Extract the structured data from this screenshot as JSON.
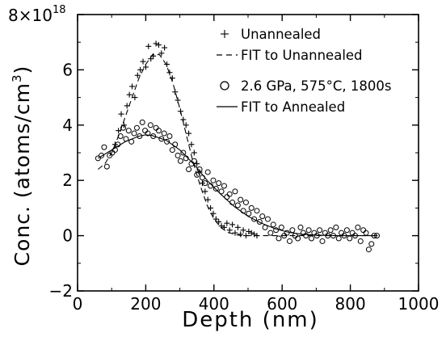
{
  "chart_data": {
    "type": "scatter",
    "xlabel": "Depth (nm)",
    "ylabel": "Conc. (atoms/cm",
    "ylabel_sup": "3",
    "ylabel_close": ")",
    "xlim": [
      0,
      1000
    ],
    "ylim": [
      -2,
      8
    ],
    "x_ticks": [
      0,
      200,
      400,
      600,
      800,
      1000
    ],
    "y_ticks": [
      -2,
      0,
      2,
      4,
      6
    ],
    "y_top_label": {
      "mantissa": "8×10",
      "exponent": "18"
    },
    "grid": false,
    "legend_position": "top-right",
    "legend": [
      {
        "marker": "+",
        "label": "Unannealed"
      },
      {
        "marker": "dashed-line",
        "label": "FIT to Unannealed"
      },
      {
        "marker": "circle",
        "label": "2.6 GPa, 575°C, 1800s"
      },
      {
        "marker": "solid-line",
        "label": "FIT to Annealed"
      }
    ],
    "series": [
      {
        "name": "Unannealed",
        "marker": "plus",
        "x": [
          110,
          120,
          128,
          136,
          145,
          152,
          160,
          168,
          176,
          184,
          192,
          200,
          208,
          215,
          222,
          230,
          238,
          246,
          255,
          262,
          270,
          278,
          286,
          294,
          302,
          310,
          318,
          326,
          334,
          342,
          350,
          358,
          366,
          374,
          382,
          390,
          398,
          406,
          414,
          422,
          430,
          438,
          446,
          454,
          462,
          470,
          478,
          486,
          494,
          502,
          510,
          518,
          526
        ],
        "y": [
          3.3,
          3.8,
          4.4,
          4.0,
          4.7,
          5.1,
          5.4,
          5.0,
          5.8,
          6.0,
          6.3,
          6.1,
          6.85,
          6.4,
          6.5,
          6.95,
          6.9,
          6.6,
          6.8,
          6.2,
          5.9,
          5.7,
          5.2,
          4.9,
          4.5,
          4.2,
          4.0,
          3.7,
          3.3,
          3.0,
          2.6,
          2.3,
          1.9,
          1.6,
          1.3,
          1.0,
          0.8,
          0.6,
          0.5,
          0.35,
          0.3,
          0.45,
          0.2,
          0.4,
          0.1,
          0.3,
          0.05,
          0.2,
          0.0,
          0.15,
          0.1,
          0.05,
          0.0
        ]
      },
      {
        "name": "2.6 GPa, 575°C, 1800s",
        "marker": "circle",
        "x": [
          60,
          70,
          78,
          86,
          94,
          102,
          110,
          118,
          126,
          134,
          142,
          150,
          158,
          166,
          174,
          182,
          190,
          198,
          206,
          214,
          222,
          230,
          238,
          246,
          254,
          262,
          270,
          278,
          286,
          294,
          302,
          310,
          318,
          326,
          334,
          342,
          350,
          358,
          366,
          374,
          382,
          390,
          398,
          406,
          414,
          422,
          430,
          438,
          446,
          454,
          462,
          470,
          478,
          486,
          494,
          502,
          510,
          518,
          526,
          534,
          542,
          550,
          558,
          566,
          574,
          582,
          590,
          598,
          606,
          614,
          622,
          630,
          638,
          646,
          654,
          662,
          670,
          678,
          686,
          694,
          702,
          710,
          718,
          726,
          734,
          742,
          750,
          758,
          766,
          774,
          782,
          790,
          798,
          806,
          814,
          822,
          830,
          838,
          846,
          854,
          862,
          870,
          878
        ],
        "y": [
          2.8,
          2.9,
          3.2,
          2.5,
          2.9,
          3.0,
          3.1,
          3.3,
          3.6,
          3.9,
          3.5,
          3.8,
          3.4,
          3.7,
          3.9,
          3.6,
          4.1,
          3.8,
          3.7,
          4.0,
          3.6,
          3.9,
          3.8,
          3.5,
          3.7,
          3.4,
          3.6,
          3.1,
          3.3,
          2.9,
          2.7,
          3.0,
          2.8,
          2.4,
          2.6,
          2.7,
          2.2,
          2.4,
          2.1,
          1.9,
          2.3,
          1.8,
          2.0,
          1.7,
          1.9,
          1.6,
          1.8,
          1.4,
          1.5,
          1.2,
          1.6,
          1.1,
          1.3,
          0.9,
          1.2,
          0.8,
          1.0,
          0.6,
          0.9,
          0.5,
          0.7,
          0.3,
          0.6,
          0.1,
          0.4,
          0.2,
          -0.1,
          0.3,
          0.0,
          0.1,
          -0.2,
          0.2,
          0.0,
          -0.1,
          0.3,
          0.1,
          0.0,
          0.2,
          -0.1,
          0.1,
          0.0,
          0.2,
          -0.2,
          0.1,
          0.0,
          0.2,
          0.0,
          0.3,
          -0.1,
          0.1,
          0.0,
          0.2,
          -0.1,
          0.1,
          0.0,
          0.3,
          -0.2,
          0.2,
          0.1,
          -0.5,
          -0.3,
          0.0,
          0.0
        ]
      },
      {
        "name": "FIT to Unannealed",
        "style": "dashed",
        "x": [
          60,
          80,
          100,
          120,
          140,
          160,
          180,
          200,
          220,
          240,
          260,
          280,
          300,
          320,
          340,
          360,
          380,
          400,
          420,
          440,
          460,
          480,
          500,
          520,
          540,
          560,
          600,
          700,
          800,
          880
        ],
        "y": [
          2.4,
          2.6,
          3.0,
          3.6,
          4.3,
          5.0,
          5.7,
          6.2,
          6.55,
          6.55,
          6.2,
          5.5,
          4.6,
          3.6,
          2.6,
          1.8,
          1.1,
          0.6,
          0.3,
          0.12,
          0.05,
          0.0,
          0.0,
          0.0,
          0.0,
          0.0,
          0.0,
          0.0,
          0.0,
          0.0
        ]
      },
      {
        "name": "FIT to Annealed",
        "style": "solid",
        "x": [
          60,
          100,
          140,
          180,
          200,
          220,
          260,
          300,
          340,
          380,
          420,
          460,
          500,
          540,
          580,
          620,
          660,
          700,
          760,
          820,
          880
        ],
        "y": [
          2.8,
          3.1,
          3.4,
          3.6,
          3.65,
          3.62,
          3.45,
          3.1,
          2.6,
          2.0,
          1.5,
          1.05,
          0.7,
          0.45,
          0.25,
          0.12,
          0.05,
          0.02,
          0.0,
          0.0,
          0.0
        ]
      }
    ]
  }
}
